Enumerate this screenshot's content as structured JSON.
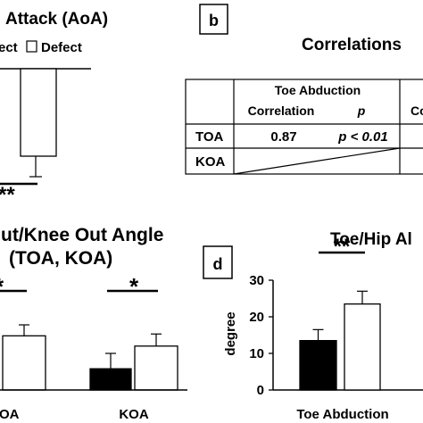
{
  "panel_a": {
    "title_fragment": "Attack (AoA)",
    "legend": {
      "filled_label": "ect",
      "open_label": "Defect"
    },
    "significance": "**"
  },
  "panel_b": {
    "panel_label": "b",
    "title": "Correlations",
    "table": {
      "group_header": "Toe Abduction",
      "col_correlation": "Correlation",
      "col_p": "p",
      "cut_header": "Co",
      "rows": [
        {
          "label": "TOA",
          "correlation": "0.87",
          "p": "p < 0.01"
        },
        {
          "label": "KOA",
          "correlation": "",
          "p": ""
        }
      ]
    }
  },
  "panel_c": {
    "title_line1": "ut/Knee Out Angle",
    "title_line2": "(TOA, KOA)",
    "significance_left": "*",
    "significance_right": "*",
    "categories": [
      "OA",
      "KOA"
    ]
  },
  "panel_d": {
    "panel_label": "d",
    "title": "Toe/Hip Al",
    "ylabel": "degree",
    "significance": "**",
    "category": "Toe Abduction"
  },
  "chart_data": [
    {
      "type": "bar",
      "panel": "a",
      "title": "Attack (AoA)",
      "series": [
        {
          "name": "Defect",
          "values": []
        }
      ],
      "annotations": [
        "**"
      ]
    },
    {
      "type": "table",
      "panel": "b",
      "title": "Correlations",
      "columns": [
        "Toe Abduction Correlation",
        "p"
      ],
      "rows": [
        [
          "TOA",
          "0.87",
          "p < 0.01"
        ],
        [
          "KOA",
          "",
          ""
        ]
      ]
    },
    {
      "type": "bar",
      "panel": "c",
      "title": "ut/Knee Out Angle (TOA, KOA)",
      "categories": [
        "OA",
        "KOA"
      ],
      "series": [
        {
          "values": [
            null,
            5.8
          ],
          "errors": [
            null,
            4.2
          ]
        },
        {
          "values": [
            14.8,
            12.0
          ],
          "errors": [
            3.0,
            3.3
          ]
        }
      ],
      "annotations": [
        "*",
        "*"
      ]
    },
    {
      "type": "bar",
      "panel": "d",
      "title": "Toe/Hip Al",
      "categories": [
        "Toe Abduction"
      ],
      "ylabel": "degree",
      "ylim": [
        0,
        30
      ],
      "yticks": [
        0,
        10,
        20,
        30
      ],
      "series": [
        {
          "values": [
            13.5
          ],
          "errors": [
            3.0
          ]
        },
        {
          "values": [
            23.5
          ],
          "errors": [
            3.5
          ]
        }
      ],
      "annotations": [
        "**"
      ]
    }
  ]
}
